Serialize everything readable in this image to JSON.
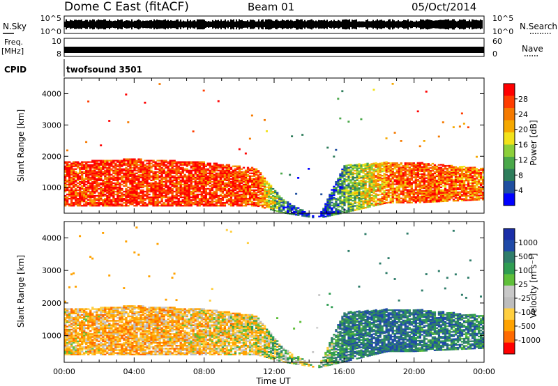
{
  "header": {
    "station": "Dome C East (fitACF)",
    "beam": "Beam 01",
    "date": "05/Oct/2014"
  },
  "top_panels": {
    "nsky_label": "N.Sky",
    "nsky_ticks": [
      "10^5",
      "10^0"
    ],
    "nsearch_label": "N.Search",
    "nsearch_ticks": [
      "10^5",
      "10^0"
    ],
    "freq_label_1": "Freq.",
    "freq_label_2": "[MHz]",
    "freq_ticks": [
      "10",
      "8"
    ],
    "nave_label": "Nave",
    "nave_ticks": [
      "60",
      "0"
    ],
    "cpid_label": "CPID",
    "cpid_value": "twofsound 3501"
  },
  "colors": {
    "power": [
      "#0000ff",
      "#1f4fa0",
      "#2e7d5b",
      "#4aa84a",
      "#8ccf3a",
      "#f2e21a",
      "#f5a800",
      "#f57a00",
      "#ff3d00",
      "#ff0000"
    ],
    "velocity": [
      "#ff0000",
      "#ff6a00",
      "#ffa200",
      "#ffcf40",
      "#bdbdbd",
      "#c8c8c8",
      "#5fbf3a",
      "#2f9d52",
      "#2f7d6a",
      "#1f4aa8",
      "#1a2ea8"
    ]
  },
  "chart_data": [
    {
      "type": "heatmap",
      "title": "",
      "xlabel": "",
      "ylabel": "Slant Range [km]",
      "x_ticks": [
        "00:00",
        "04:00",
        "08:00",
        "12:00",
        "16:00",
        "20:00",
        "00:00"
      ],
      "x_range_hours": [
        0,
        24
      ],
      "y_ticks": [
        1000,
        2000,
        3000,
        4000
      ],
      "ylim": [
        180,
        4500
      ],
      "colorbar": {
        "label": "Power [dB]",
        "ticks": [
          "4",
          "8",
          "12",
          "16",
          "20",
          "24",
          "28"
        ],
        "range": [
          0,
          30
        ]
      },
      "series": [
        {
          "x_hours": [
            0,
            4,
            8,
            11,
            12.5,
            14.5,
            16,
            18.5,
            20,
            24
          ],
          "dominant_power_db": [
            26,
            27,
            27,
            25,
            8,
            0,
            10,
            22,
            25,
            22
          ],
          "echo_range_km": [
            [
              400,
              1800
            ],
            [
              400,
              1900
            ],
            [
              400,
              1800
            ],
            [
              400,
              1600
            ],
            [
              180,
              600
            ],
            [
              0,
              0
            ],
            [
              180,
              1700
            ],
            [
              500,
              1800
            ],
            [
              500,
              1800
            ],
            [
              600,
              1600
            ]
          ]
        }
      ]
    },
    {
      "type": "heatmap",
      "title": "",
      "xlabel": "Time UT",
      "ylabel": "Slant Range [km]",
      "x_ticks": [
        "00:00",
        "04:00",
        "08:00",
        "12:00",
        "16:00",
        "20:00",
        "00:00"
      ],
      "x_range_hours": [
        0,
        24
      ],
      "y_ticks": [
        1000,
        2000,
        3000,
        4000
      ],
      "ylim": [
        180,
        4500
      ],
      "colorbar": {
        "label": "Velocity [m s⁻¹]",
        "ticks": [
          "1000",
          "500",
          "100",
          "25",
          "-25",
          "-100",
          "-500",
          "-1000"
        ]
      },
      "series": [
        {
          "x_hours": [
            0,
            4,
            8,
            11,
            12.5,
            14.5,
            16,
            18.5,
            20,
            24
          ],
          "dominant_velocity_ms": [
            -150,
            -200,
            -150,
            -100,
            50,
            0,
            200,
            300,
            250,
            200
          ],
          "echo_range_km": [
            [
              400,
              1800
            ],
            [
              400,
              1900
            ],
            [
              400,
              1800
            ],
            [
              400,
              1600
            ],
            [
              180,
              600
            ],
            [
              0,
              0
            ],
            [
              180,
              1700
            ],
            [
              500,
              1800
            ],
            [
              500,
              1800
            ],
            [
              600,
              1600
            ]
          ]
        }
      ]
    }
  ]
}
